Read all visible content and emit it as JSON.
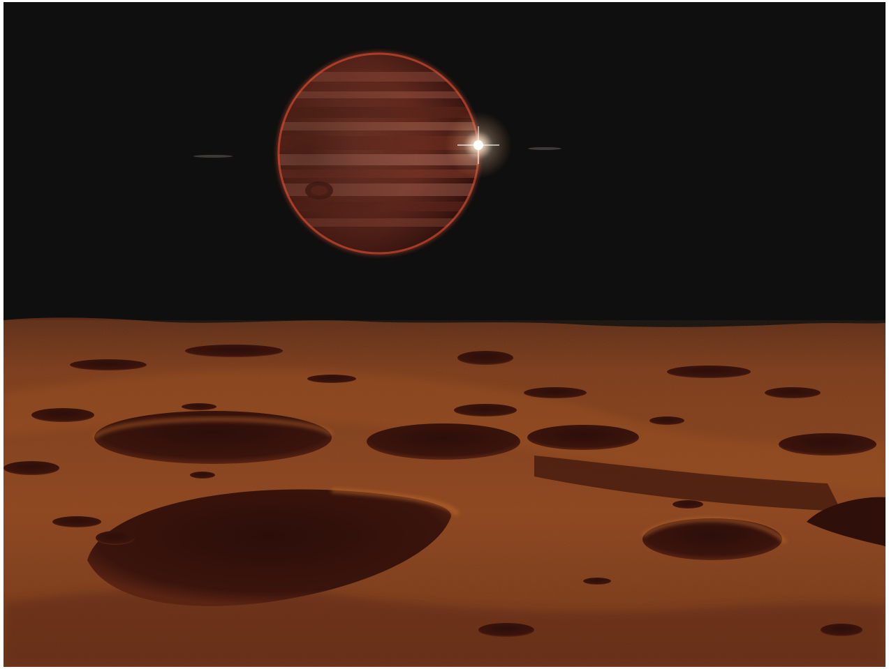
{
  "scene": {
    "subject": "gas-giant-over-cratered-moon",
    "colors": {
      "sky": "#0f0f0f",
      "planet_base": "#6b2f22",
      "planet_rim": "#c2412a",
      "surface_light": "#9a4f1f",
      "surface_dark": "#3a140c",
      "crater_shadow": "#2a0d08",
      "sun_core": "#ffffff"
    },
    "elements": [
      "sky",
      "gas-giant-planet",
      "planet-rings",
      "sun-flare",
      "lunar-surface",
      "craters"
    ]
  }
}
